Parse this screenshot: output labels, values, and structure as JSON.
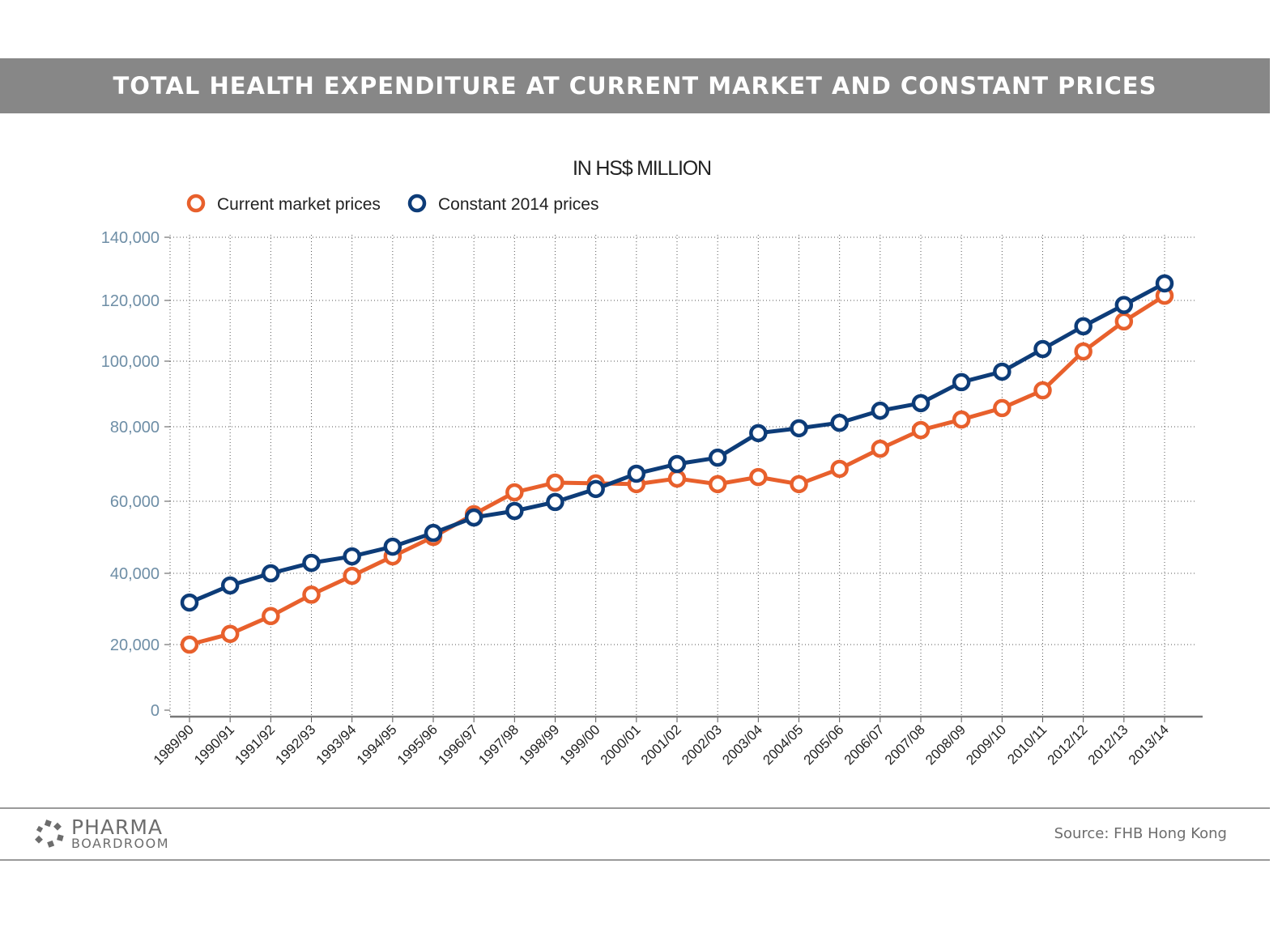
{
  "title": "TOTAL HEALTH EXPENDITURE AT CURRENT MARKET AND CONSTANT PRICES",
  "chart_data": {
    "type": "line",
    "subtitle": "IN HS$ MILLION",
    "categories": [
      "1989/90",
      "1990/91",
      "1991/92",
      "1992/93",
      "1993/94",
      "1994/95",
      "1995/96",
      "1996/97",
      "1997/98",
      "1998/99",
      "1999/00",
      "2000/01",
      "2001/02",
      "2002/03",
      "2003/04",
      "2004/05",
      "2005/06",
      "2006/07",
      "2007/08",
      "2008/09",
      "2009/10",
      "2010/11",
      "2012/12",
      "2012/13",
      "2013/14"
    ],
    "y_ticks": [
      0,
      20000,
      40000,
      60000,
      80000,
      100000,
      120000,
      140000
    ],
    "y_tick_labels": [
      "0",
      "20,000",
      "40,000",
      "60,000",
      "80,000",
      "100,000",
      "120,000",
      "140,000"
    ],
    "ylim": [
      0,
      140000
    ],
    "grid": true,
    "legend_position": "top-left",
    "series": [
      {
        "name": "Current market prices",
        "color": "#e8602c",
        "values": [
          20000,
          23000,
          28000,
          34000,
          39300,
          44700,
          50100,
          56400,
          62400,
          65000,
          64800,
          64600,
          66100,
          64600,
          66500,
          64600,
          68700,
          74100,
          79100,
          82200,
          85700,
          91100,
          103200,
          113100,
          121500
        ]
      },
      {
        "name": "Constant 2014 prices",
        "color": "#0d3c78",
        "values": [
          31800,
          36600,
          40000,
          42900,
          44700,
          47400,
          51200,
          55500,
          57300,
          59800,
          63300,
          67400,
          70000,
          71700,
          78300,
          79600,
          81200,
          84900,
          87200,
          93600,
          96800,
          104000,
          111500,
          118500,
          125400
        ]
      }
    ]
  },
  "footer": {
    "logo_line1": "PHARMA",
    "logo_line2": "BOARDROOM",
    "source": "Source: FHB Hong Kong"
  }
}
